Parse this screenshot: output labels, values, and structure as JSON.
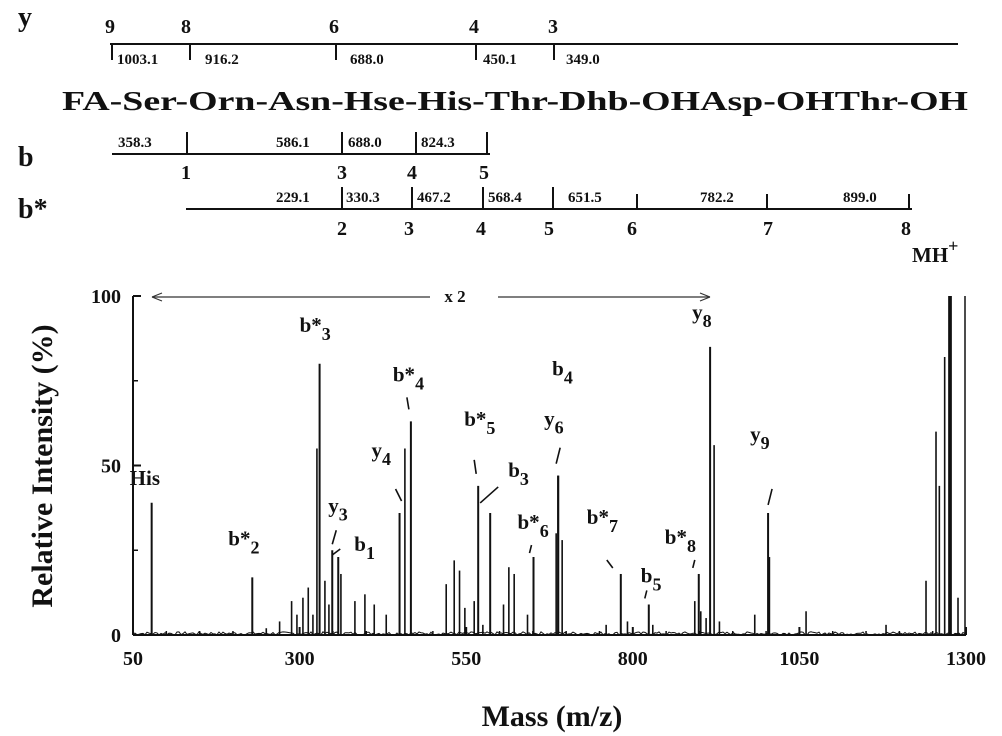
{
  "chart_data": {
    "type": "spectrum",
    "peptide_sequence": "FA-Ser-Orn-Asn-Hse-His-Thr-Dhb-OHAsp-OHThr-OH",
    "xlabel": "Mass (m/z)",
    "ylabel": "Relative Intensity (%)",
    "xlim": [
      50,
      1300
    ],
    "ylim": [
      0,
      100
    ],
    "x_ticks": [
      "50",
      "300",
      "550",
      "800",
      "1050",
      "1300"
    ],
    "y_ticks": [
      "0",
      "50",
      "100"
    ],
    "scale_annotation": "x 2",
    "y_series": {
      "label": "y",
      "indices": [
        "9",
        "8",
        "6",
        "4",
        "3"
      ],
      "masses": [
        "1003.1",
        "916.2",
        "688.0",
        "450.1",
        "349.0"
      ]
    },
    "b_series": {
      "label": "b",
      "masses": [
        "358.3",
        "586.1",
        "688.0",
        "824.3"
      ],
      "indices": [
        "1",
        "3",
        "4",
        "5"
      ]
    },
    "bstar_series": {
      "label": "b*",
      "masses": [
        "229.1",
        "330.3",
        "467.2",
        "568.4",
        "651.5",
        "782.2",
        "899.0"
      ],
      "indices": [
        "2",
        "3",
        "4",
        "5",
        "6",
        "7",
        "8"
      ]
    },
    "labeled_peaks": [
      {
        "main": "His",
        "sub": "",
        "mz": 78,
        "rel": 39
      },
      {
        "main": "b*",
        "sub": "2",
        "mz": 229,
        "rel": 17
      },
      {
        "main": "b*",
        "sub": "3",
        "mz": 330,
        "rel": 80
      },
      {
        "main": "y",
        "sub": "3",
        "mz": 349,
        "rel": 25
      },
      {
        "main": "b",
        "sub": "1",
        "mz": 358,
        "rel": 23
      },
      {
        "main": "y",
        "sub": "4",
        "mz": 450,
        "rel": 36
      },
      {
        "main": "b*",
        "sub": "4",
        "mz": 467,
        "rel": 63
      },
      {
        "main": "b*",
        "sub": "5",
        "mz": 568,
        "rel": 44
      },
      {
        "main": "b",
        "sub": "3",
        "mz": 586,
        "rel": 36
      },
      {
        "main": "b*",
        "sub": "6",
        "mz": 651,
        "rel": 23
      },
      {
        "main": "b",
        "sub": "4",
        "mz": 688,
        "rel": 47
      },
      {
        "main": "y",
        "sub": "6",
        "mz": 688,
        "rel": 47
      },
      {
        "main": "b*",
        "sub": "7",
        "mz": 782,
        "rel": 18
      },
      {
        "main": "b",
        "sub": "5",
        "mz": 824,
        "rel": 9
      },
      {
        "main": "b*",
        "sub": "8",
        "mz": 899,
        "rel": 18
      },
      {
        "main": "y",
        "sub": "8",
        "mz": 916,
        "rel": 85
      },
      {
        "main": "y",
        "sub": "9",
        "mz": 1003,
        "rel": 36
      },
      {
        "main": "MH",
        "sub": "+",
        "mz": 1276,
        "rel": 100
      }
    ],
    "minor_peaks": [
      [
        250,
        2
      ],
      [
        270,
        4
      ],
      [
        288,
        10
      ],
      [
        296,
        6
      ],
      [
        305,
        11
      ],
      [
        313,
        14
      ],
      [
        320,
        6
      ],
      [
        326,
        55
      ],
      [
        338,
        16
      ],
      [
        344,
        9
      ],
      [
        362,
        18
      ],
      [
        383,
        10
      ],
      [
        398,
        12
      ],
      [
        412,
        9
      ],
      [
        430,
        6
      ],
      [
        458,
        55
      ],
      [
        520,
        15
      ],
      [
        532,
        22
      ],
      [
        540,
        19
      ],
      [
        548,
        8
      ],
      [
        562,
        10
      ],
      [
        575,
        3
      ],
      [
        606,
        9
      ],
      [
        614,
        20
      ],
      [
        622,
        18
      ],
      [
        642,
        6
      ],
      [
        685,
        30
      ],
      [
        694,
        28
      ],
      [
        760,
        3
      ],
      [
        792,
        4
      ],
      [
        830,
        3
      ],
      [
        893,
        10
      ],
      [
        902,
        7
      ],
      [
        910,
        5
      ],
      [
        922,
        56
      ],
      [
        930,
        4
      ],
      [
        983,
        6
      ],
      [
        1005,
        23
      ],
      [
        1060,
        7
      ],
      [
        1180,
        3
      ],
      [
        1240,
        16
      ],
      [
        1255,
        60
      ],
      [
        1260,
        44
      ],
      [
        1268,
        82
      ],
      [
        1288,
        11
      ]
    ]
  }
}
